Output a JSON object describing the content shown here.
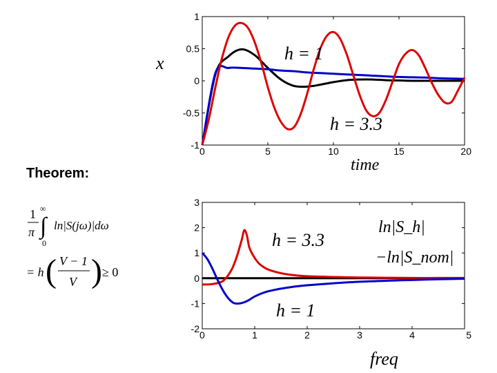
{
  "theorem_label": "Theorem:",
  "formula": {
    "line1_frac_num": "1",
    "line1_frac_den": "π",
    "integral_upper": "∞",
    "integral_lower": "0",
    "integrand": "ln|S(jω)|dω",
    "line2": "= h",
    "paren_num": "V − 1",
    "paren_den": "V",
    "inequality": "≥ 0"
  },
  "chart_data": [
    {
      "type": "line",
      "xlabel": "time",
      "ylabel": "x",
      "xlim": [
        0,
        20
      ],
      "ylim": [
        -1,
        1
      ],
      "x_ticks": [
        "0",
        "5",
        "10",
        "15",
        "20"
      ],
      "y_ticks": [
        "1",
        "0.5",
        "0",
        "-0.5",
        "-1"
      ],
      "annotations": [
        "h = 1",
        "h = 3.3"
      ],
      "series": [
        {
          "color": "#000000",
          "x": [
            0,
            1,
            2,
            3,
            4,
            5,
            6,
            7,
            8,
            9,
            10,
            11,
            12,
            13,
            14,
            15,
            16,
            17,
            18,
            19,
            20
          ],
          "y": [
            -1,
            0.1,
            0.38,
            0.49,
            0.4,
            0.2,
            0.02,
            -0.08,
            -0.09,
            -0.06,
            -0.02,
            0.01,
            0.02,
            0.02,
            0.01,
            0.005,
            0,
            0,
            0,
            0,
            0
          ]
        },
        {
          "color": "#0000cc",
          "x": [
            0,
            1,
            2,
            3,
            4,
            5,
            6,
            7,
            8,
            9,
            10,
            11,
            12,
            13,
            14,
            15,
            16,
            17,
            18,
            19,
            20
          ],
          "y": [
            -1,
            0.12,
            0.2,
            0.2,
            0.19,
            0.18,
            0.16,
            0.15,
            0.13,
            0.12,
            0.11,
            0.1,
            0.09,
            0.08,
            0.07,
            0.06,
            0.055,
            0.05,
            0.04,
            0.035,
            0.03
          ]
        },
        {
          "color": "#dd0000",
          "x": [
            0,
            0.5,
            1,
            1.5,
            2,
            2.5,
            3,
            3.5,
            4,
            4.5,
            5,
            5.5,
            6,
            6.5,
            7,
            7.5,
            8,
            8.5,
            9,
            9.5,
            10,
            10.5,
            11,
            11.5,
            12,
            12.5,
            13,
            13.5,
            14,
            14.5,
            15,
            15.5,
            16,
            16.5,
            17,
            17.5,
            18,
            18.5,
            19,
            19.5,
            20
          ],
          "y": [
            -1,
            -0.6,
            -0.1,
            0.35,
            0.68,
            0.86,
            0.9,
            0.82,
            0.6,
            0.28,
            -0.1,
            -0.42,
            -0.64,
            -0.75,
            -0.72,
            -0.52,
            -0.2,
            0.18,
            0.5,
            0.7,
            0.76,
            0.66,
            0.42,
            0.1,
            -0.22,
            -0.46,
            -0.55,
            -0.5,
            -0.3,
            -0.02,
            0.26,
            0.42,
            0.48,
            0.4,
            0.2,
            -0.03,
            -0.22,
            -0.34,
            -0.33,
            -0.15,
            0.05
          ]
        }
      ]
    },
    {
      "type": "line",
      "xlabel": "freq",
      "ylabel": "",
      "xlim": [
        0,
        5
      ],
      "ylim": [
        -2,
        3
      ],
      "x_ticks": [
        "0",
        "1",
        "2",
        "3",
        "4",
        "5"
      ],
      "y_ticks": [
        "3",
        "2",
        "1",
        "0",
        "-1",
        "-2"
      ],
      "annotations": [
        "h = 3.3",
        "h = 1"
      ],
      "legend": [
        "ln|S_h|",
        "−ln|S_nom|"
      ],
      "series": [
        {
          "color": "#000000",
          "x": [
            0,
            5
          ],
          "y": [
            0,
            0
          ]
        },
        {
          "color": "#dd0000",
          "x": [
            0,
            0.2,
            0.4,
            0.55,
            0.65,
            0.75,
            0.8,
            0.85,
            0.9,
            1.0,
            1.1,
            1.25,
            1.5,
            1.75,
            2,
            2.5,
            3,
            3.5,
            4,
            4.5,
            5
          ],
          "y": [
            -0.25,
            -0.23,
            -0.1,
            0.3,
            0.8,
            1.5,
            1.9,
            1.7,
            1.2,
            0.8,
            0.55,
            0.35,
            0.2,
            0.12,
            0.08,
            0.05,
            0.03,
            0.02,
            0.01,
            0.01,
            0.01
          ]
        },
        {
          "color": "#0000cc",
          "x": [
            0,
            0.1,
            0.2,
            0.3,
            0.4,
            0.5,
            0.6,
            0.7,
            0.8,
            0.9,
            1.0,
            1.2,
            1.4,
            1.6,
            1.8,
            2,
            2.5,
            3,
            3.5,
            4,
            4.5,
            5
          ],
          "y": [
            1,
            0.75,
            0.35,
            -0.1,
            -0.5,
            -0.8,
            -0.98,
            -1.0,
            -0.95,
            -0.85,
            -0.72,
            -0.55,
            -0.45,
            -0.38,
            -0.32,
            -0.28,
            -0.2,
            -0.14,
            -0.1,
            -0.07,
            -0.04,
            -0.02
          ]
        }
      ]
    }
  ]
}
